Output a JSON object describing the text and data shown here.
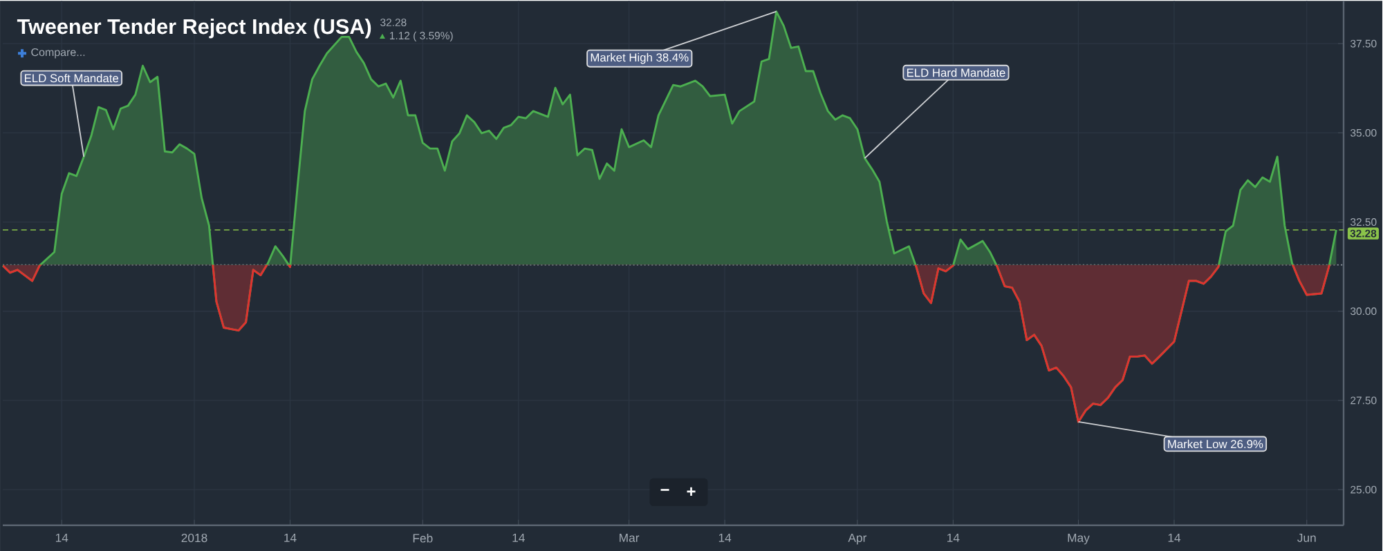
{
  "chart_data": {
    "type": "area",
    "title": "Tweener Tender Reject Index (USA)",
    "subtitle": "32.28",
    "color": "#4caf50",
    "grid": true,
    "xlim": [
      "2017-12-06",
      "2018-06-06"
    ],
    "ylim": [
      24.0,
      38.7
    ],
    "xticks": [
      {
        "value": "2017-12-14",
        "label": "14"
      },
      {
        "value": "2018-01-01",
        "label": "2018"
      },
      {
        "value": "2018-01-14",
        "label": "14"
      },
      {
        "value": "2018-02-01",
        "label": "Feb"
      },
      {
        "value": "2018-02-14",
        "label": "14"
      },
      {
        "value": "2018-03-01",
        "label": "Mar"
      },
      {
        "value": "2018-03-14",
        "label": "14"
      },
      {
        "value": "2018-04-01",
        "label": "Apr"
      },
      {
        "value": "2018-04-14",
        "label": "14"
      },
      {
        "value": "2018-05-01",
        "label": "May"
      },
      {
        "value": "2018-05-14",
        "label": "14"
      },
      {
        "value": "2018-06-01",
        "label": "Jun"
      }
    ],
    "yticks": [
      {
        "value": 25,
        "label": "25.00"
      },
      {
        "value": 27.5,
        "label": "27.50"
      },
      {
        "value": 30,
        "label": "30.00"
      },
      {
        "value": 32.5,
        "label": "32.50"
      },
      {
        "value": 35,
        "label": "35.00"
      },
      {
        "value": 37.5,
        "label": "37.50"
      }
    ],
    "x": [
      "2017-12-06",
      "2017-12-07",
      "2017-12-08",
      "2017-12-10",
      "2017-12-11",
      "2017-12-13",
      "2017-12-14",
      "2017-12-15",
      "2017-12-16",
      "2017-12-17",
      "2017-12-18",
      "2017-12-19",
      "2017-12-20",
      "2017-12-21",
      "2017-12-22",
      "2017-12-23",
      "2017-12-24",
      "2017-12-25",
      "2017-12-26",
      "2017-12-27",
      "2017-12-28",
      "2017-12-29",
      "2017-12-30",
      "2017-12-31",
      "2018-01-01",
      "2018-01-02",
      "2018-01-03",
      "2018-01-04",
      "2018-01-05",
      "2018-01-06",
      "2018-01-07",
      "2018-01-08",
      "2018-01-09",
      "2018-01-10",
      "2018-01-11",
      "2018-01-12",
      "2018-01-13",
      "2018-01-14",
      "2018-01-15",
      "2018-01-16",
      "2018-01-17",
      "2018-01-18",
      "2018-01-19",
      "2018-01-21",
      "2018-01-22",
      "2018-01-23",
      "2018-01-24",
      "2018-01-25",
      "2018-01-26",
      "2018-01-27",
      "2018-01-28",
      "2018-01-29",
      "2018-01-30",
      "2018-01-31",
      "2018-02-01",
      "2018-02-02",
      "2018-02-03",
      "2018-02-04",
      "2018-02-05",
      "2018-02-06",
      "2018-02-07",
      "2018-02-08",
      "2018-02-09",
      "2018-02-10",
      "2018-02-11",
      "2018-02-12",
      "2018-02-13",
      "2018-02-14",
      "2018-02-15",
      "2018-02-16",
      "2018-02-18",
      "2018-02-19",
      "2018-02-20",
      "2018-02-21",
      "2018-02-22",
      "2018-02-23",
      "2018-02-24",
      "2018-02-25",
      "2018-02-26",
      "2018-02-27",
      "2018-02-28",
      "2018-03-01",
      "2018-03-03",
      "2018-03-04",
      "2018-03-05",
      "2018-03-07",
      "2018-03-08",
      "2018-03-10",
      "2018-03-11",
      "2018-03-12",
      "2018-03-14",
      "2018-03-15",
      "2018-03-16",
      "2018-03-18",
      "2018-03-19",
      "2018-03-20",
      "2018-03-21",
      "2018-03-22",
      "2018-03-23",
      "2018-03-24",
      "2018-03-25",
      "2018-03-26",
      "2018-03-27",
      "2018-03-28",
      "2018-03-29",
      "2018-03-30",
      "2018-03-31",
      "2018-04-01",
      "2018-04-02",
      "2018-04-03",
      "2018-04-04",
      "2018-04-05",
      "2018-04-06",
      "2018-04-08",
      "2018-04-09",
      "2018-04-10",
      "2018-04-11",
      "2018-04-12",
      "2018-04-13",
      "2018-04-14",
      "2018-04-15",
      "2018-04-16",
      "2018-04-18",
      "2018-04-19",
      "2018-04-20",
      "2018-04-21",
      "2018-04-22",
      "2018-04-23",
      "2018-04-24",
      "2018-04-25",
      "2018-04-26",
      "2018-04-27",
      "2018-04-28",
      "2018-04-29",
      "2018-04-30",
      "2018-05-01",
      "2018-05-02",
      "2018-05-03",
      "2018-05-04",
      "2018-05-05",
      "2018-05-06",
      "2018-05-07",
      "2018-05-08",
      "2018-05-09",
      "2018-05-10",
      "2018-05-11",
      "2018-05-12",
      "2018-05-14",
      "2018-05-16",
      "2018-05-17",
      "2018-05-18",
      "2018-05-19",
      "2018-05-20",
      "2018-05-21",
      "2018-05-22",
      "2018-05-23",
      "2018-05-24",
      "2018-05-25",
      "2018-05-26",
      "2018-05-27",
      "2018-05-28",
      "2018-05-29",
      "2018-05-30",
      "2018-05-31",
      "2018-06-01",
      "2018-06-03",
      "2018-06-04",
      "2018-06-05"
    ],
    "values": [
      31.28,
      31.08,
      31.16,
      30.85,
      31.28,
      31.66,
      33.29,
      33.87,
      33.79,
      34.33,
      34.91,
      35.72,
      35.64,
      35.1,
      35.68,
      35.76,
      36.07,
      36.88,
      36.42,
      36.57,
      34.48,
      34.45,
      34.68,
      34.56,
      34.41,
      33.17,
      32.4,
      30.27,
      29.54,
      29.5,
      29.46,
      29.69,
      31.16,
      31.01,
      31.35,
      31.82,
      31.55,
      31.24,
      33.48,
      35.61,
      36.5,
      36.88,
      37.23,
      37.69,
      37.69,
      37.27,
      36.96,
      36.5,
      36.3,
      36.38,
      35.99,
      36.46,
      35.49,
      35.49,
      34.72,
      34.56,
      34.56,
      33.94,
      34.76,
      34.99,
      35.49,
      35.3,
      34.99,
      35.06,
      34.83,
      35.14,
      35.22,
      35.45,
      35.41,
      35.61,
      35.45,
      36.26,
      35.8,
      36.07,
      34.37,
      34.56,
      34.52,
      33.71,
      34.14,
      33.94,
      35.1,
      34.6,
      34.79,
      34.6,
      35.49,
      36.34,
      36.3,
      36.46,
      36.3,
      36.03,
      36.07,
      35.26,
      35.61,
      35.88,
      37.0,
      37.07,
      38.4,
      38.0,
      37.38,
      37.42,
      36.73,
      36.73,
      36.11,
      35.61,
      35.37,
      35.49,
      35.41,
      35.1,
      34.29,
      33.98,
      33.63,
      32.51,
      31.62,
      31.82,
      31.24,
      30.5,
      30.23,
      31.2,
      31.12,
      31.28,
      32.01,
      31.74,
      31.97,
      31.66,
      31.24,
      30.7,
      30.66,
      30.27,
      29.19,
      29.34,
      29.03,
      28.34,
      28.42,
      28.18,
      27.87,
      26.9,
      27.22,
      27.41,
      27.37,
      27.57,
      27.87,
      28.07,
      28.73,
      28.73,
      28.76,
      28.53,
      28.73,
      29.15,
      30.85,
      30.85,
      30.77,
      30.97,
      31.24,
      32.24,
      32.4,
      33.4,
      33.67,
      33.48,
      33.75,
      33.63,
      34.33,
      32.4,
      31.35,
      30.85,
      30.46,
      30.5,
      31.24,
      32.28
    ],
    "ref_lines": [
      {
        "axis": "y",
        "value": 32.28,
        "label": "32.28",
        "color": "#8bc34a",
        "line_style": "dashed"
      },
      {
        "axis": "y",
        "value": 31.3,
        "color": "#8a939c",
        "line_style": "dotted"
      }
    ],
    "annotations": [
      {
        "text": "ELD Soft Mandate",
        "x": "2017-12-17",
        "y": 34.33
      },
      {
        "text": "Market High 38.4%",
        "x": "2018-03-21",
        "y": 38.4
      },
      {
        "text": "ELD Hard Mandate",
        "x": "2018-04-02",
        "y": 34.29
      },
      {
        "text": "Market Low 26.9%",
        "x": "2018-05-01",
        "y": 26.9
      },
      "Compare...",
      "1.12 ( 3.59%)",
      "−",
      "+"
    ]
  }
}
